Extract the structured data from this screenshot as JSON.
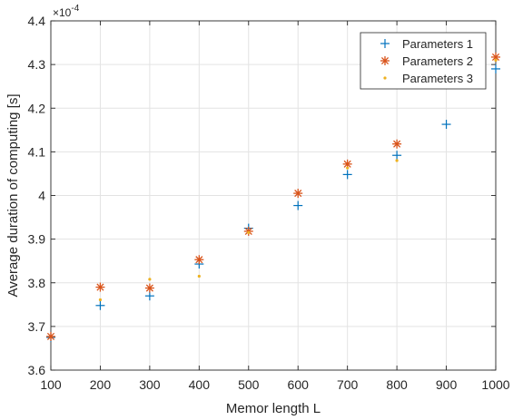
{
  "chart_data": {
    "type": "scatter",
    "xlabel": "Memor length L",
    "ylabel": "Average duration of computing [s]",
    "y_exponent_label": "×10",
    "y_exponent_power": "-4",
    "xlim": [
      100,
      1000
    ],
    "ylim": [
      3.6,
      4.4
    ],
    "y_scale_note": "values shown in units of 1e-4 s",
    "grid": true,
    "legend_position": "top-right",
    "x_ticks": [
      100,
      200,
      300,
      400,
      500,
      600,
      700,
      800,
      900,
      1000
    ],
    "x_tick_labels": [
      "100",
      "200",
      "300",
      "400",
      "500",
      "600",
      "700",
      "800",
      "900",
      "1000"
    ],
    "y_ticks": [
      3.6,
      3.7,
      3.8,
      3.9,
      4.0,
      4.1,
      4.2,
      4.3,
      4.4
    ],
    "y_tick_labels": [
      "3.6",
      "3.7",
      "3.8",
      "3.9",
      "4",
      "4.1",
      "4.2",
      "4.3",
      "4.4"
    ],
    "series": [
      {
        "name": "Parameters 1",
        "marker": "plus",
        "color": "#0072BD",
        "points": [
          [
            100,
            3.675
          ],
          [
            200,
            3.748
          ],
          [
            300,
            3.77
          ],
          [
            400,
            3.843
          ],
          [
            500,
            3.925
          ],
          [
            600,
            3.977
          ],
          [
            700,
            4.048
          ],
          [
            800,
            4.092
          ],
          [
            900,
            4.163
          ],
          [
            1000,
            4.29
          ]
        ]
      },
      {
        "name": "Parameters 2",
        "marker": "asterisk",
        "color": "#D95319",
        "points": [
          [
            100,
            3.677
          ],
          [
            200,
            3.79
          ],
          [
            300,
            3.788
          ],
          [
            400,
            3.853
          ],
          [
            500,
            3.918
          ],
          [
            600,
            4.005
          ],
          [
            700,
            4.072
          ],
          [
            800,
            4.118
          ],
          [
            1000,
            4.317
          ]
        ]
      },
      {
        "name": "Parameters 3",
        "marker": "dot",
        "color": "#EDB120",
        "points": [
          [
            200,
            3.761
          ],
          [
            300,
            3.808
          ],
          [
            400,
            3.815
          ],
          [
            500,
            3.915
          ],
          [
            700,
            4.063
          ],
          [
            800,
            4.08
          ],
          [
            1000,
            4.31
          ]
        ]
      }
    ]
  }
}
